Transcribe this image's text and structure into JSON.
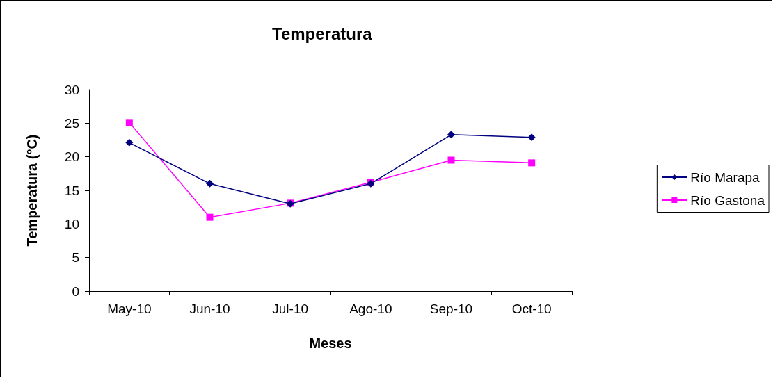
{
  "chart_data": {
    "type": "line",
    "title": "Temperatura",
    "xlabel": "Meses",
    "ylabel": "Temperatura (°C)",
    "categories": [
      "May-10",
      "Jun-10",
      "Jul-10",
      "Ago-10",
      "Sep-10",
      "Oct-10"
    ],
    "series": [
      {
        "name": "Río Marapa",
        "color": "#000080",
        "marker": "diamond",
        "values": [
          22.1,
          16,
          13,
          16,
          23.3,
          22.9
        ]
      },
      {
        "name": "Río Gastona",
        "color": "#ff00ff",
        "marker": "square",
        "values": [
          25.1,
          11,
          13.1,
          16.2,
          19.5,
          19.1
        ]
      }
    ],
    "ylim": [
      0,
      30
    ],
    "yticks": [
      0,
      5,
      10,
      15,
      20,
      25,
      30
    ],
    "grid": false,
    "legend": "right",
    "line_style": "solid"
  }
}
